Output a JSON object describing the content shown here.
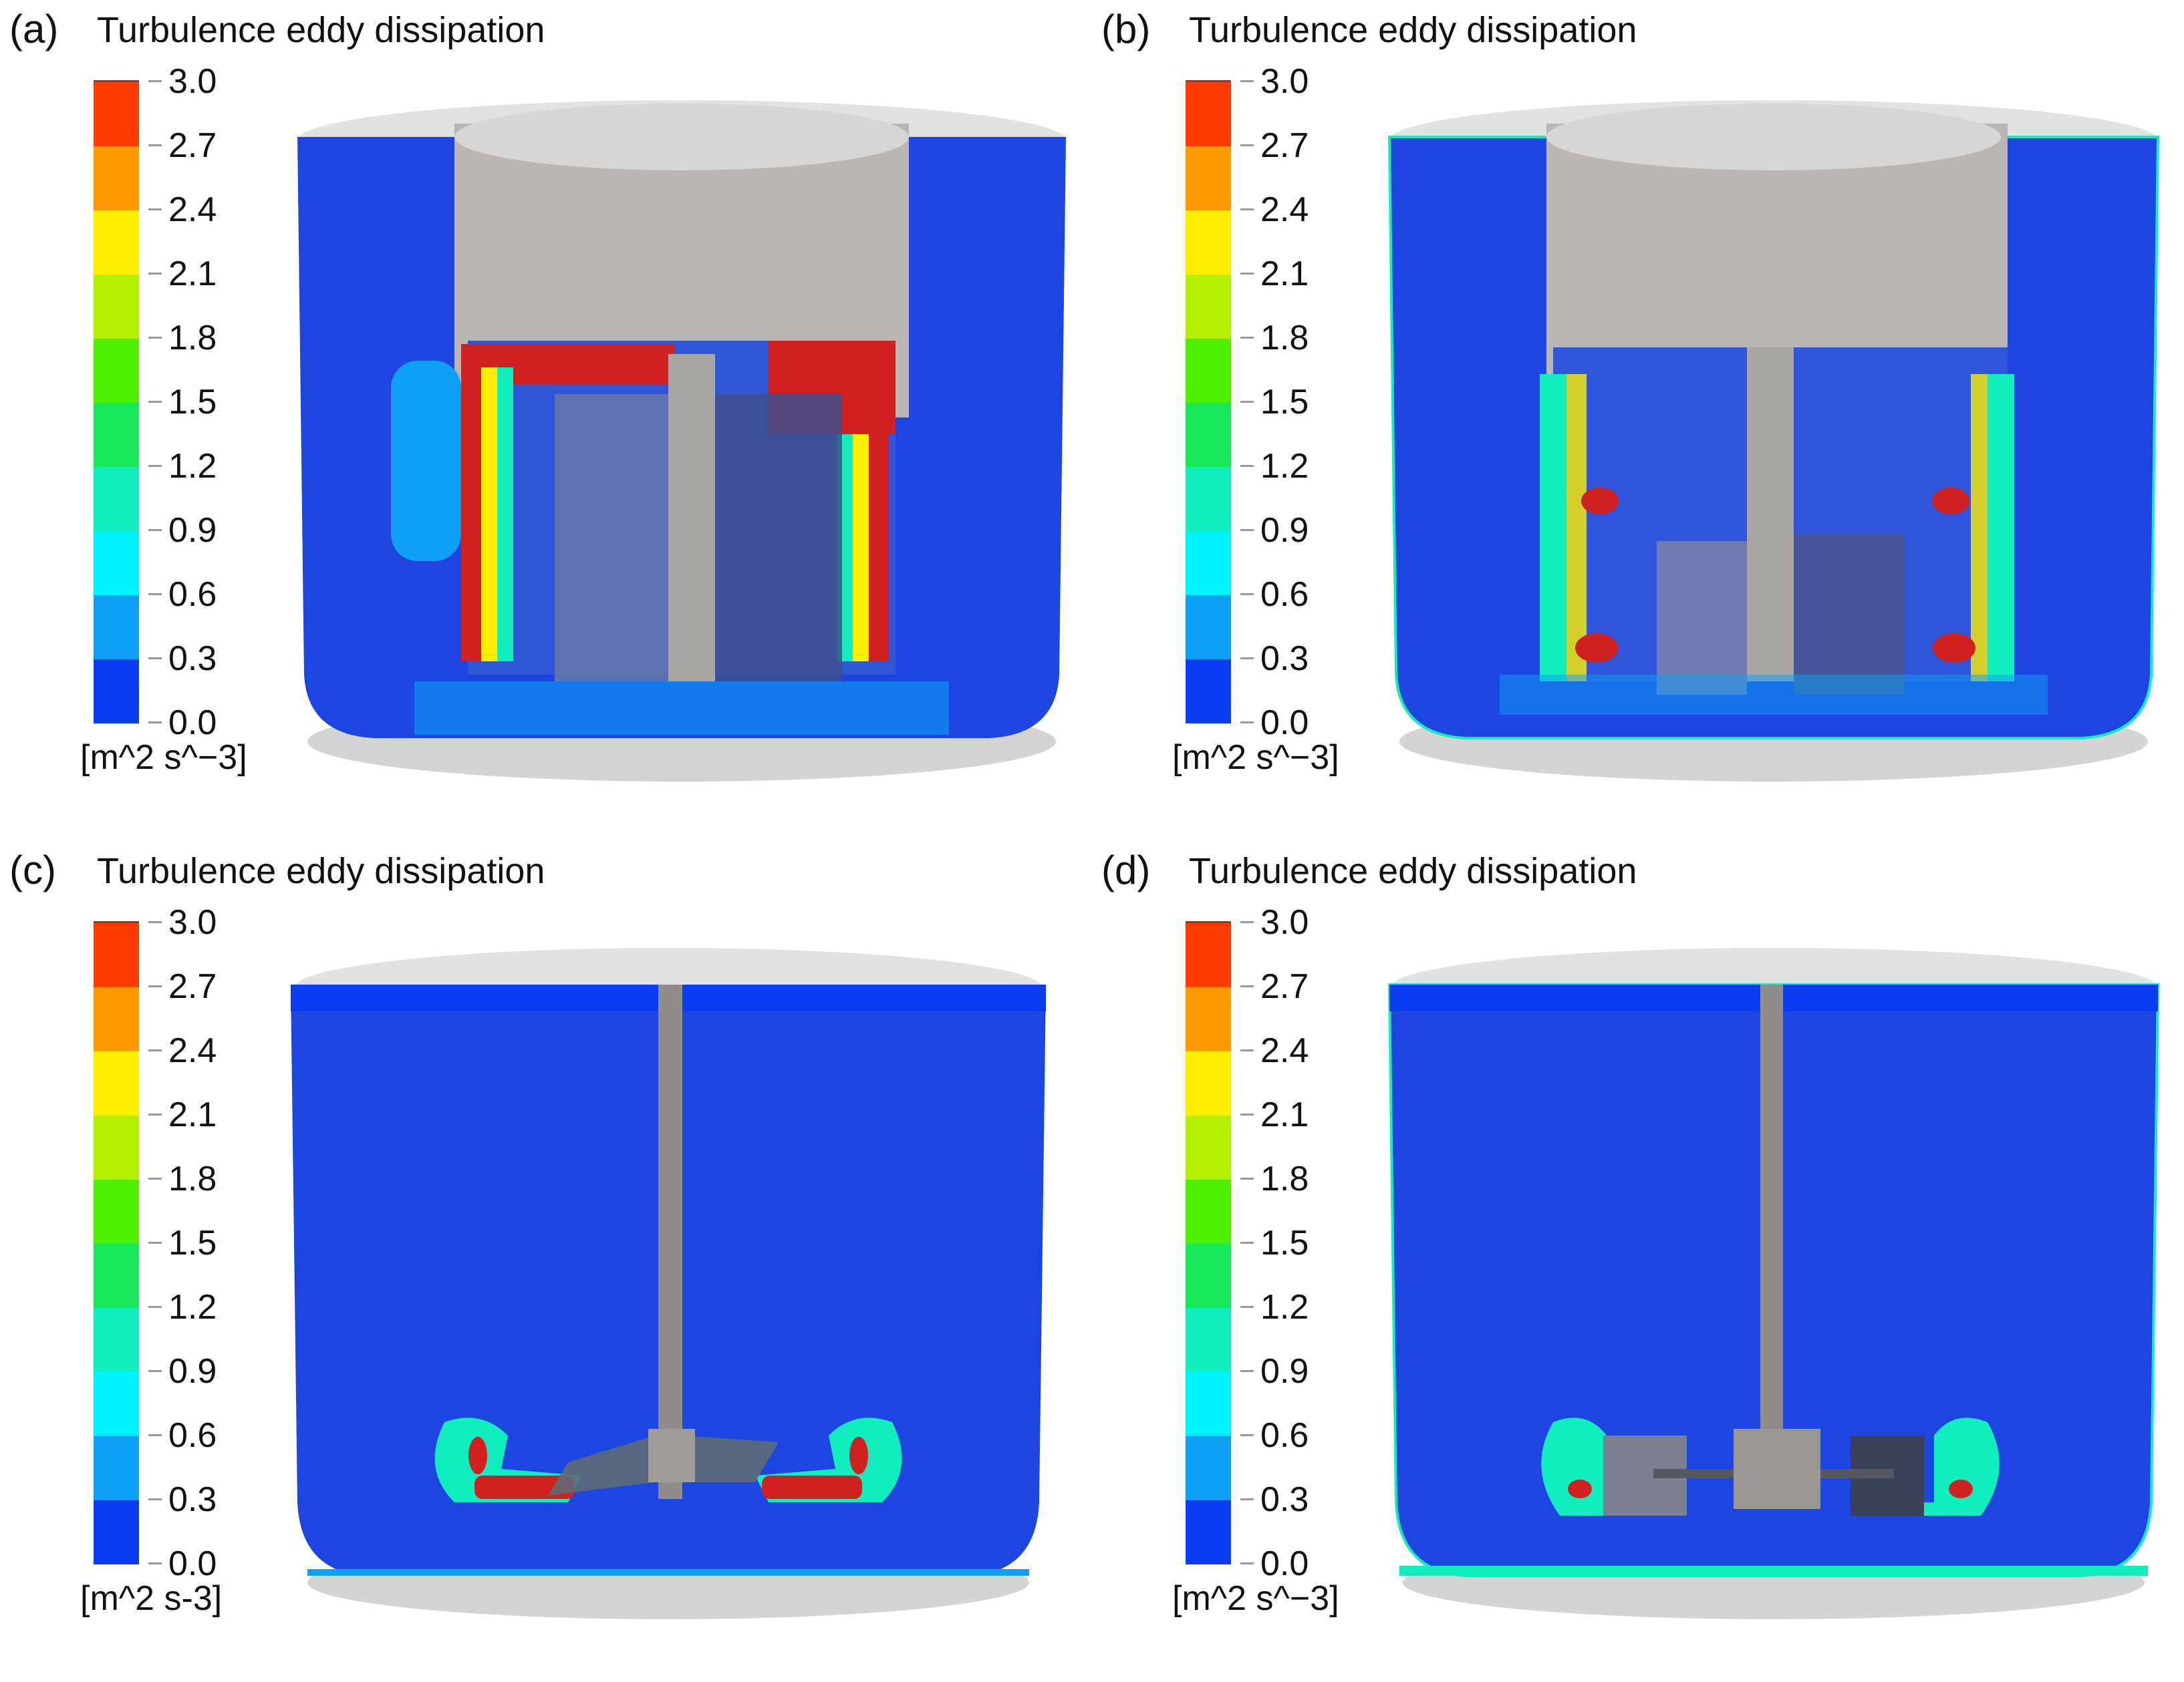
{
  "figure": {
    "panels": [
      {
        "id": "a",
        "label": "(a)",
        "title": "Turbulence eddy dissipation",
        "unit": "[m^2 s^−3]",
        "impeller": "perforated-basket-rotor",
        "description": "Cylindrical tank with large perforated rotor; high dissipation (red) along rotor outer edges and top rim"
      },
      {
        "id": "b",
        "label": "(b)",
        "title": "Turbulence eddy dissipation",
        "unit": "[m^2 s^−3]",
        "impeller": "perforated-basket-rotor-short-blades",
        "description": "Perforated rotor with shorter inner blades; red hotspots near rotor sides at mid and lower heights"
      },
      {
        "id": "c",
        "label": "(c)",
        "title": "Turbulence eddy dissipation",
        "unit": "[m^2 s-3]",
        "impeller": "pitched-blade-turbine",
        "description": "Pitched blade impeller near bottom; red regions in blade discharge zones"
      },
      {
        "id": "d",
        "label": "(d)",
        "title": "Turbulence eddy dissipation",
        "unit": "[m^2 s^−3]",
        "impeller": "rushton-turbine",
        "description": "Disk turbine near bottom; small red spots at blade tips"
      }
    ]
  },
  "chart_data": {
    "type": "heatmap",
    "title": "Turbulence eddy dissipation",
    "colorbar": {
      "label": "Turbulence eddy dissipation",
      "unit": "m^2 s^-3",
      "range": [
        0.0,
        3.0
      ],
      "ticks": [
        "3.0",
        "2.7",
        "2.4",
        "2.1",
        "1.8",
        "1.5",
        "1.2",
        "0.9",
        "0.6",
        "0.3",
        "0.0"
      ],
      "levels": [
        {
          "from": 2.7,
          "to": 3.0,
          "color": "#ff3d00"
        },
        {
          "from": 2.4,
          "to": 2.7,
          "color": "#ff9a00"
        },
        {
          "from": 2.1,
          "to": 2.4,
          "color": "#ffee00"
        },
        {
          "from": 1.8,
          "to": 2.1,
          "color": "#b4f000"
        },
        {
          "from": 1.5,
          "to": 1.8,
          "color": "#4cf000"
        },
        {
          "from": 1.2,
          "to": 1.5,
          "color": "#16e85a"
        },
        {
          "from": 0.9,
          "to": 1.2,
          "color": "#10eebe"
        },
        {
          "from": 0.6,
          "to": 0.9,
          "color": "#00f2ff"
        },
        {
          "from": 0.3,
          "to": 0.6,
          "color": "#0fa0f5"
        },
        {
          "from": 0.0,
          "to": 0.3,
          "color": "#0a3cf2"
        }
      ]
    },
    "panels": [
      "(a)",
      "(b)",
      "(c)",
      "(d)"
    ],
    "background_field_color": "#1d45e0",
    "max_color": "#d01818"
  }
}
